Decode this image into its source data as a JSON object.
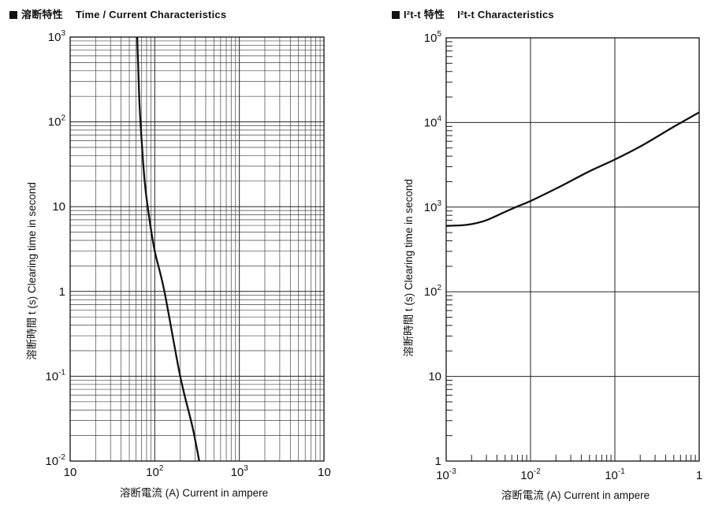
{
  "panels": [
    {
      "title_jp": "溶断特性",
      "title_en": "Time / Current Characteristics"
    },
    {
      "title_jp": "I²t-t 特性",
      "title_en": "I²t-t Characteristics"
    }
  ],
  "chart_data": [
    {
      "type": "line",
      "title": "溶断特性 Time / Current Characteristics",
      "xlabel": "溶断電流 (A) Current in ampere",
      "ylabel": "溶断時間 t (s) Clearing time in second",
      "xscale": "log",
      "yscale": "log",
      "xlim": [
        10,
        10000
      ],
      "ylim": [
        0.01,
        1000
      ],
      "x_tick_labels": [
        {
          "base": "10",
          "exp": ""
        },
        {
          "base": "10",
          "exp": "2"
        },
        {
          "base": "10",
          "exp": "3"
        },
        {
          "base": "10",
          "exp": ""
        }
      ],
      "y_tick_labels": [
        {
          "base": "10",
          "exp": "-2"
        },
        {
          "base": "10",
          "exp": "-1"
        },
        {
          "base": "1",
          "exp": ""
        },
        {
          "base": "10",
          "exp": ""
        },
        {
          "base": "10",
          "exp": "2"
        },
        {
          "base": "10",
          "exp": "3"
        }
      ],
      "grid": "full logarithmic",
      "series": [
        {
          "x": [
            62,
            64,
            66,
            70,
            76,
            85,
            100,
            130,
            200,
            280,
            335
          ],
          "y": [
            1000,
            400,
            160,
            60,
            20,
            8,
            3,
            1,
            0.1,
            0.025,
            0.01
          ]
        }
      ]
    },
    {
      "type": "line",
      "title": "I²t-t 特性 I²t-t Characteristics",
      "xlabel": "溶断電流 (A) Current in ampere",
      "ylabel": "溶断時間 t (s) Clearing time in second",
      "xscale": "log",
      "yscale": "log",
      "xlim": [
        0.001,
        1
      ],
      "ylim": [
        1,
        100000
      ],
      "x_tick_labels": [
        {
          "base": "10",
          "exp": "-3"
        },
        {
          "base": "10",
          "exp": "-2"
        },
        {
          "base": "10",
          "exp": "-1"
        },
        {
          "base": "1",
          "exp": ""
        }
      ],
      "y_tick_labels": [
        {
          "base": "1",
          "exp": ""
        },
        {
          "base": "10",
          "exp": ""
        },
        {
          "base": "10",
          "exp": "2"
        },
        {
          "base": "10",
          "exp": "3"
        },
        {
          "base": "10",
          "exp": "4"
        },
        {
          "base": "10",
          "exp": "5"
        }
      ],
      "grid": "major decades",
      "series": [
        {
          "x": [
            0.001,
            0.0015,
            0.002,
            0.003,
            0.005,
            0.007,
            0.01,
            0.02,
            0.05,
            0.1,
            0.2,
            0.5,
            1
          ],
          "y": [
            600,
            610,
            630,
            700,
            880,
            1020,
            1180,
            1650,
            2650,
            3650,
            5200,
            8900,
            13200
          ]
        }
      ]
    }
  ]
}
